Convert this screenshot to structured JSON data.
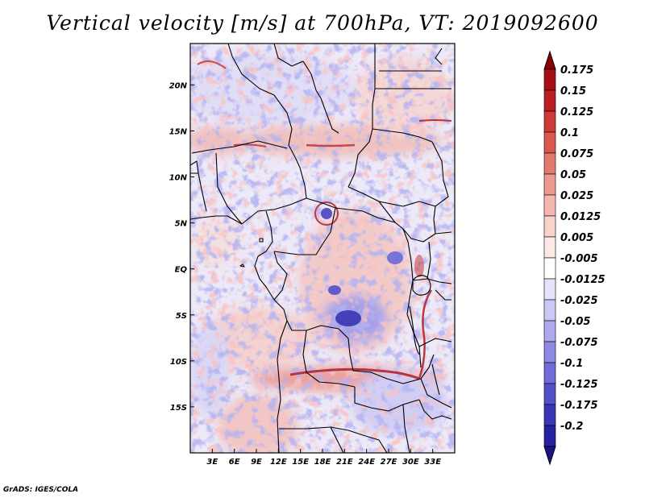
{
  "title": "Vertical velocity [m/s] at 700hPa, VT: 2019092600",
  "credit": "GrADS: IGES/COLA",
  "map": {
    "lon_range": [
      0,
      36
    ],
    "lat_range": [
      -20,
      24.5
    ],
    "lon_ticks": [
      {
        "value": 3,
        "label": "3E"
      },
      {
        "value": 6,
        "label": "6E"
      },
      {
        "value": 9,
        "label": "9E"
      },
      {
        "value": 12,
        "label": "12E"
      },
      {
        "value": 15,
        "label": "15E"
      },
      {
        "value": 18,
        "label": "18E"
      },
      {
        "value": 21,
        "label": "21E"
      },
      {
        "value": 24,
        "label": "24E"
      },
      {
        "value": 27,
        "label": "27E"
      },
      {
        "value": 30,
        "label": "30E"
      },
      {
        "value": 33,
        "label": "33E"
      }
    ],
    "lat_ticks": [
      {
        "value": 20,
        "label": "20N"
      },
      {
        "value": 15,
        "label": "15N"
      },
      {
        "value": 10,
        "label": "10N"
      },
      {
        "value": 5,
        "label": "5N"
      },
      {
        "value": 0,
        "label": "EQ"
      },
      {
        "value": -5,
        "label": "5S"
      },
      {
        "value": -10,
        "label": "10S"
      },
      {
        "value": -15,
        "label": "15S"
      }
    ]
  },
  "colorbar": {
    "levels": [
      {
        "label": "0.175",
        "color": "#a50f15"
      },
      {
        "label": "0.15",
        "color": "#bb1e22"
      },
      {
        "label": "0.125",
        "color": "#cc3b37"
      },
      {
        "label": "0.1",
        "color": "#d9584f"
      },
      {
        "label": "0.075",
        "color": "#e37a6e"
      },
      {
        "label": "0.05",
        "color": "#ec9a8f"
      },
      {
        "label": "0.025",
        "color": "#f4b8b0"
      },
      {
        "label": "0.0125",
        "color": "#f9d2cc"
      },
      {
        "label": "0.005",
        "color": "#fce8e5"
      },
      {
        "label": "-0.005",
        "color": "#ffffff"
      },
      {
        "label": "-0.0125",
        "color": "#e4e3fb"
      },
      {
        "label": "-0.025",
        "color": "#cac8f5"
      },
      {
        "label": "-0.05",
        "color": "#ada9ee"
      },
      {
        "label": "-0.075",
        "color": "#8e8ae4"
      },
      {
        "label": "-0.1",
        "color": "#6f6bd8"
      },
      {
        "label": "-0.125",
        "color": "#5450c9"
      },
      {
        "label": "-0.175",
        "color": "#3a35b5"
      },
      {
        "label": "-0.2",
        "color": "#26219e"
      }
    ],
    "top_color": "#8b0000",
    "bottom_color": "#1a1488"
  }
}
